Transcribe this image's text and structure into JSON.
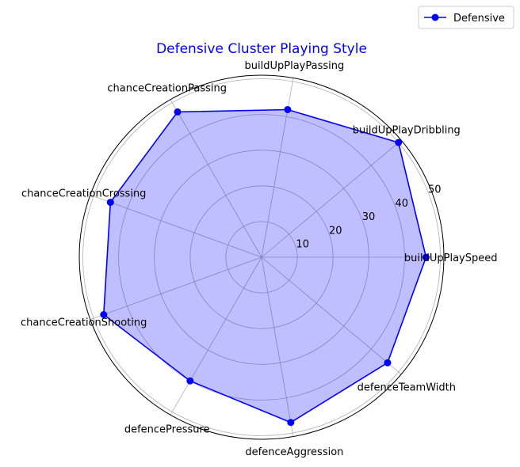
{
  "chart_data": {
    "type": "radar",
    "title": "Defensive Cluster Playing Style",
    "categories": [
      "buildUpPlaySpeed",
      "buildUpPlayDribbling",
      "buildUpPlayPassing",
      "chanceCreationPassing",
      "chanceCreationCrossing",
      "chanceCreationShooting",
      "defencePressure",
      "defenceAggression",
      "defenceTeamWidth"
    ],
    "series": [
      {
        "name": "Defensive",
        "values": [
          46,
          50,
          42,
          47,
          45,
          47,
          40,
          47,
          46
        ]
      }
    ],
    "rlim": [
      0,
      51
    ],
    "r_ticks": [
      10,
      20,
      30,
      40,
      50
    ],
    "grid": true,
    "legend": "top-right",
    "colors": {
      "title": "#0000ff",
      "line": "#0000ff",
      "fill": "#0000ff",
      "grid": "#b0b0b0",
      "outline": "#000000"
    }
  }
}
